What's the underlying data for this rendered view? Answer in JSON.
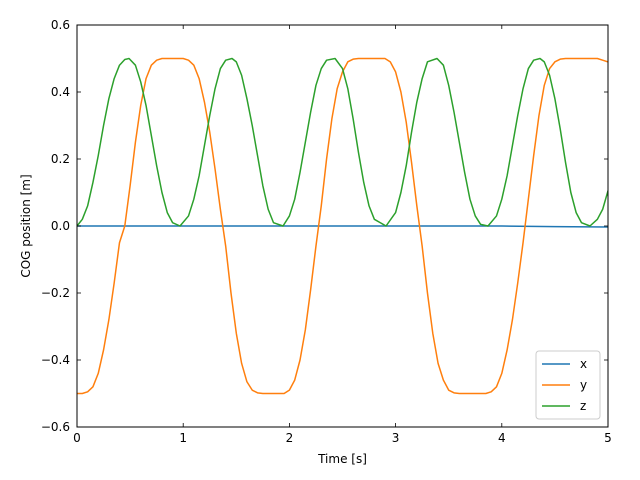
{
  "chart_data": {
    "type": "line",
    "xlabel": "Time [s]",
    "ylabel": "COG position [m]",
    "xlim": [
      0,
      5
    ],
    "ylim": [
      -0.6,
      0.6
    ],
    "xticks": [
      0,
      1,
      2,
      3,
      4,
      5
    ],
    "xtick_labels": [
      "0",
      "1",
      "2",
      "3",
      "4",
      "5"
    ],
    "yticks": [
      -0.6,
      -0.4,
      -0.2,
      0.0,
      0.2,
      0.4,
      0.6
    ],
    "ytick_labels": [
      "−0.6",
      "−0.4",
      "−0.2",
      "0.0",
      "0.2",
      "0.4",
      "0.6"
    ],
    "grid": false,
    "legend_position": "bottom-right",
    "series": [
      {
        "name": "x",
        "color": "#1f77b4",
        "x": [
          0,
          0.5,
          1.0,
          1.5,
          2.0,
          2.5,
          3.0,
          3.5,
          4.0,
          4.5,
          5.0
        ],
        "y": [
          0.0,
          0.0,
          0.0,
          0.0,
          0.0,
          0.0,
          0.0,
          0.0,
          0.0,
          -0.002,
          -0.003
        ]
      },
      {
        "name": "y",
        "color": "#ff7f0e",
        "x": [
          0,
          0.05,
          0.1,
          0.15,
          0.2,
          0.25,
          0.3,
          0.35,
          0.4,
          0.45,
          0.5,
          0.55,
          0.6,
          0.65,
          0.7,
          0.75,
          0.8,
          0.85,
          0.9,
          0.95,
          1.0,
          1.05,
          1.1,
          1.15,
          1.2,
          1.25,
          1.3,
          1.35,
          1.4,
          1.45,
          1.5,
          1.55,
          1.6,
          1.65,
          1.7,
          1.75,
          1.8,
          1.85,
          1.9,
          1.95,
          2.0,
          2.05,
          2.1,
          2.15,
          2.2,
          2.25,
          2.3,
          2.35,
          2.4,
          2.45,
          2.5,
          2.55,
          2.6,
          2.65,
          2.7,
          2.75,
          2.8,
          2.85,
          2.9,
          2.95,
          3.0,
          3.05,
          3.1,
          3.15,
          3.2,
          3.25,
          3.3,
          3.35,
          3.4,
          3.45,
          3.5,
          3.55,
          3.6,
          3.65,
          3.7,
          3.75,
          3.8,
          3.85,
          3.9,
          3.95,
          4.0,
          4.05,
          4.1,
          4.15,
          4.2,
          4.25,
          4.3,
          4.35,
          4.4,
          4.45,
          4.5,
          4.55,
          4.6,
          4.65,
          4.7,
          4.75,
          4.8,
          4.85,
          4.9,
          4.95,
          5.0
        ],
        "y": [
          -0.5,
          -0.5,
          -0.495,
          -0.48,
          -0.44,
          -0.37,
          -0.28,
          -0.17,
          -0.05,
          0.0,
          0.12,
          0.25,
          0.36,
          0.44,
          0.48,
          0.495,
          0.5,
          0.5,
          0.5,
          0.5,
          0.5,
          0.495,
          0.48,
          0.44,
          0.37,
          0.28,
          0.17,
          0.05,
          -0.06,
          -0.2,
          -0.32,
          -0.41,
          -0.465,
          -0.49,
          -0.498,
          -0.5,
          -0.5,
          -0.5,
          -0.5,
          -0.5,
          -0.49,
          -0.46,
          -0.4,
          -0.31,
          -0.19,
          -0.06,
          0.06,
          0.2,
          0.32,
          0.41,
          0.46,
          0.49,
          0.498,
          0.5,
          0.5,
          0.5,
          0.5,
          0.5,
          0.5,
          0.49,
          0.46,
          0.4,
          0.31,
          0.19,
          0.06,
          -0.06,
          -0.2,
          -0.32,
          -0.41,
          -0.46,
          -0.49,
          -0.498,
          -0.5,
          -0.5,
          -0.5,
          -0.5,
          -0.5,
          -0.5,
          -0.495,
          -0.48,
          -0.44,
          -0.37,
          -0.28,
          -0.17,
          -0.05,
          0.08,
          0.21,
          0.33,
          0.42,
          0.47,
          0.49,
          0.498,
          0.5,
          0.5,
          0.5,
          0.5,
          0.5,
          0.5,
          0.5,
          0.495,
          0.49
        ]
      },
      {
        "name": "z",
        "color": "#2ca02c",
        "x": [
          0,
          0.05,
          0.1,
          0.15,
          0.2,
          0.25,
          0.3,
          0.35,
          0.4,
          0.45,
          0.49,
          0.55,
          0.6,
          0.65,
          0.7,
          0.75,
          0.8,
          0.85,
          0.9,
          0.97,
          1.05,
          1.1,
          1.15,
          1.2,
          1.25,
          1.3,
          1.35,
          1.4,
          1.46,
          1.5,
          1.55,
          1.6,
          1.65,
          1.7,
          1.75,
          1.8,
          1.85,
          1.94,
          2.0,
          2.05,
          2.1,
          2.15,
          2.2,
          2.25,
          2.3,
          2.35,
          2.43,
          2.5,
          2.55,
          2.6,
          2.65,
          2.7,
          2.75,
          2.8,
          2.91,
          3.0,
          3.05,
          3.1,
          3.15,
          3.2,
          3.25,
          3.3,
          3.39,
          3.45,
          3.5,
          3.55,
          3.6,
          3.65,
          3.7,
          3.75,
          3.8,
          3.87,
          3.95,
          4.0,
          4.05,
          4.1,
          4.15,
          4.2,
          4.25,
          4.3,
          4.36,
          4.4,
          4.45,
          4.5,
          4.55,
          4.6,
          4.65,
          4.7,
          4.75,
          4.83,
          4.9,
          4.95,
          5.0
        ],
        "y": [
          0.0,
          0.02,
          0.06,
          0.13,
          0.21,
          0.3,
          0.38,
          0.44,
          0.48,
          0.497,
          0.5,
          0.48,
          0.43,
          0.36,
          0.27,
          0.18,
          0.1,
          0.04,
          0.01,
          0.0,
          0.03,
          0.08,
          0.15,
          0.24,
          0.33,
          0.41,
          0.47,
          0.495,
          0.5,
          0.49,
          0.45,
          0.38,
          0.3,
          0.21,
          0.12,
          0.05,
          0.01,
          0.0,
          0.03,
          0.08,
          0.16,
          0.25,
          0.34,
          0.42,
          0.47,
          0.495,
          0.5,
          0.47,
          0.41,
          0.32,
          0.22,
          0.13,
          0.06,
          0.02,
          0.0,
          0.04,
          0.1,
          0.18,
          0.28,
          0.37,
          0.44,
          0.49,
          0.5,
          0.48,
          0.42,
          0.34,
          0.25,
          0.16,
          0.08,
          0.03,
          0.005,
          0.0,
          0.03,
          0.08,
          0.15,
          0.24,
          0.33,
          0.41,
          0.47,
          0.495,
          0.5,
          0.49,
          0.45,
          0.38,
          0.29,
          0.19,
          0.1,
          0.04,
          0.01,
          0.0,
          0.02,
          0.05,
          0.105
        ]
      }
    ]
  }
}
